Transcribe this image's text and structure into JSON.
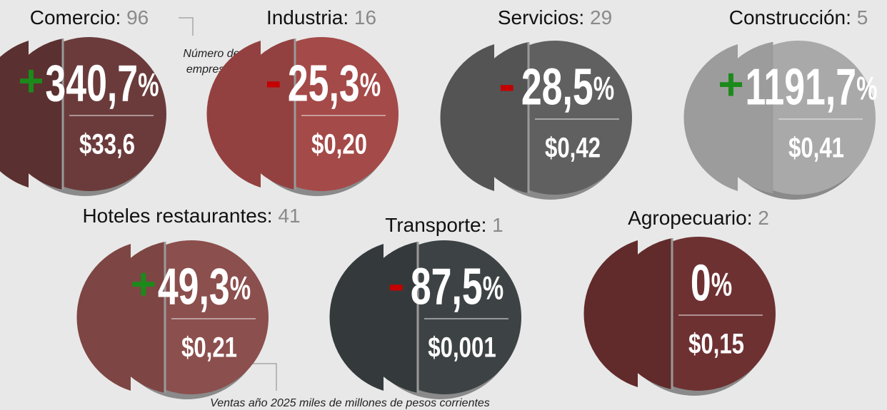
{
  "change_unit": "%",
  "annotations": {
    "companies": "Número de empresas",
    "sales": "Ventas año 2025 miles de millones de pesos corrientes"
  },
  "sectors": [
    {
      "name": "Comercio:",
      "count": "96",
      "sign": "+",
      "change": "340,7",
      "sales": "$33,6",
      "color": "#6b3b3b",
      "dark": "#5b3030"
    },
    {
      "name": "Industria:",
      "count": "16",
      "sign": "-",
      "change": "25,3",
      "sales": "$0,20",
      "color": "#a44a48",
      "dark": "#934140"
    },
    {
      "name": "Servicios:",
      "count": "29",
      "sign": "-",
      "change": "28,5",
      "sales": "$0,42",
      "color": "#606060",
      "dark": "#545454"
    },
    {
      "name": "Construcción:",
      "count": "5",
      "sign": "+",
      "change": "1191,7",
      "sales": "$0,41",
      "color": "#a9a9a9",
      "dark": "#9c9c9c"
    },
    {
      "name": "Hoteles restaurantes:",
      "count": "41",
      "sign": "+",
      "change": "49,3",
      "sales": "$0,21",
      "color": "#8b4f4d",
      "dark": "#7d4543"
    },
    {
      "name": "Transporte:",
      "count": "1",
      "sign": "-",
      "change": "87,5",
      "sales": "$0,001",
      "color": "#3d4345",
      "dark": "#343a3c"
    },
    {
      "name": "Agropecuario:",
      "count": "2",
      "change": "0",
      "sales": "$0,15",
      "color": "#6e3132",
      "dark": "#612a2b"
    }
  ]
}
